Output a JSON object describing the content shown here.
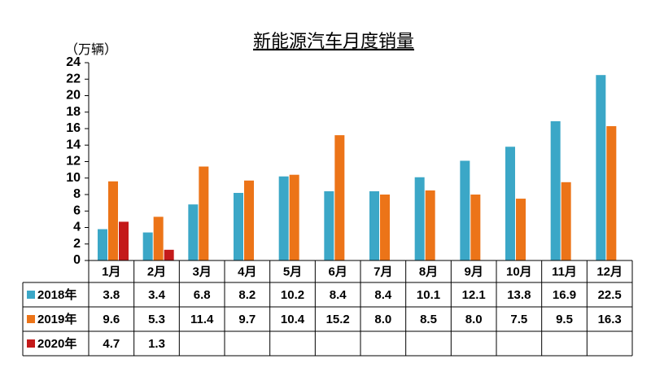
{
  "chart_data": {
    "type": "bar",
    "title": "新能源汽车月度销量",
    "y_label": "（万辆）",
    "categories": [
      "1月",
      "2月",
      "3月",
      "4月",
      "5月",
      "6月",
      "7月",
      "8月",
      "9月",
      "10月",
      "11月",
      "12月"
    ],
    "series": [
      {
        "name": "2018年",
        "color": "#3ba7c7",
        "values": [
          3.8,
          3.4,
          6.8,
          8.2,
          10.2,
          8.4,
          8.4,
          10.1,
          12.1,
          13.8,
          16.9,
          22.5
        ],
        "value_labels": [
          "3.8",
          "3.4",
          "6.8",
          "8.2",
          "10.2",
          "8.4",
          "8.4",
          "10.1",
          "12.1",
          "13.8",
          "16.9",
          "22.5"
        ]
      },
      {
        "name": "2019年",
        "color": "#ec7418",
        "values": [
          9.6,
          5.3,
          11.4,
          9.7,
          10.4,
          15.2,
          8.0,
          8.5,
          8.0,
          7.5,
          9.5,
          16.3
        ],
        "value_labels": [
          "9.6",
          "5.3",
          "11.4",
          "9.7",
          "10.4",
          "15.2",
          "8.0",
          "8.5",
          "8.0",
          "7.5",
          "9.5",
          "16.3"
        ]
      },
      {
        "name": "2020年",
        "color": "#c41a1a",
        "values": [
          4.7,
          1.3,
          null,
          null,
          null,
          null,
          null,
          null,
          null,
          null,
          null,
          null
        ],
        "value_labels": [
          "4.7",
          "1.3",
          null,
          null,
          null,
          null,
          null,
          null,
          null,
          null,
          null,
          null
        ]
      }
    ],
    "ylim": [
      0,
      24
    ],
    "yticks": [
      0,
      2,
      4,
      6,
      8,
      10,
      12,
      14,
      16,
      18,
      20,
      22,
      24
    ]
  }
}
